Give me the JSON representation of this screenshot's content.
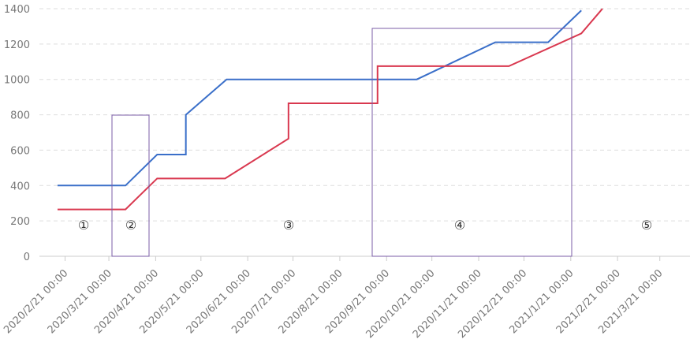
{
  "chart_data": {
    "type": "line",
    "xlim": [
      "2020/2/4 00:00",
      "2021/4/10 00:00"
    ],
    "xticks": [
      "2020/2/21 00:00",
      "2020/3/21 00:00",
      "2020/4/21 00:00",
      "2020/5/21 00:00",
      "2020/6/21 00:00",
      "2020/7/21 00:00",
      "2020/8/21 00:00",
      "2020/9/21 00:00",
      "2020/10/21 00:00",
      "2020/11/21 00:00",
      "2020/12/21 00:00",
      "2021/1/21 00:00",
      "2021/2/21 00:00",
      "2021/3/21 00:00"
    ],
    "ylim": [
      0,
      1400
    ],
    "yticks": [
      0,
      200,
      400,
      600,
      800,
      1000,
      1200,
      1400
    ],
    "grid": true,
    "series": [
      {
        "color": "#3a6fc9",
        "x": [
          "2020/2/16 00:00",
          "2020/4/1 00:00",
          "2020/4/22 00:00",
          "2020/5/11 00:00",
          "2020/5/11 00:00",
          "2020/6/7 00:00",
          "2020/10/11 00:00",
          "2020/12/2 00:00",
          "2021/1/6 00:00",
          "2021/1/28 00:00"
        ],
        "values": [
          400,
          400,
          575,
          575,
          800,
          1000,
          1000,
          1210,
          1210,
          1390
        ]
      },
      {
        "color": "#d9384f",
        "x": [
          "2020/2/16 00:00",
          "2020/4/1 00:00",
          "2020/4/22 00:00",
          "2020/6/6 00:00",
          "2020/7/18 00:00",
          "2020/7/18 00:00",
          "2020/9/15 00:00",
          "2020/9/15 00:00",
          "2020/12/11 00:00",
          "2021/1/28 00:00",
          "2021/2/11 00:00"
        ],
        "values": [
          265,
          265,
          440,
          440,
          665,
          865,
          865,
          1075,
          1075,
          1260,
          1400
        ]
      }
    ],
    "annotations": [
      "①",
      "②",
      "③",
      "④",
      "⑤"
    ]
  }
}
